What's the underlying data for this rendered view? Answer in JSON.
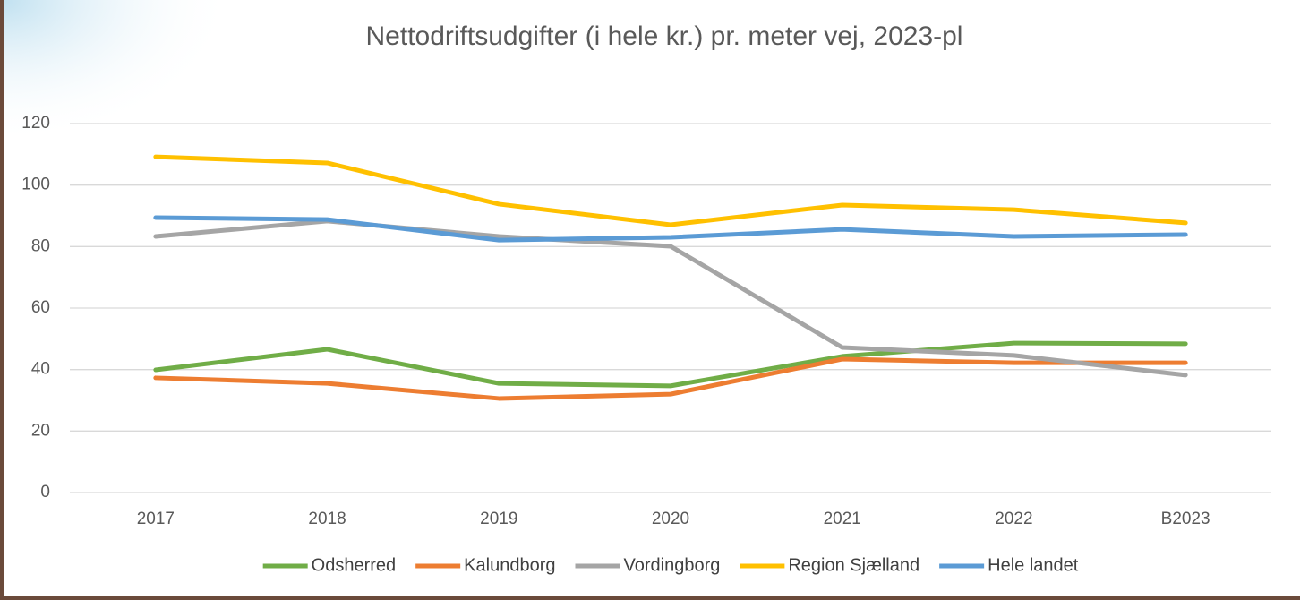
{
  "chart_data": {
    "type": "line",
    "title": "Nettodriftsudgifter (i hele kr.) pr. meter vej, 2023-pl",
    "categories": [
      "2017",
      "2018",
      "2019",
      "2020",
      "2021",
      "2022",
      "B2023"
    ],
    "series": [
      {
        "name": "Odsherred",
        "color": "#70ad47",
        "values": [
          39.9,
          46.6,
          35.5,
          34.7,
          44.3,
          48.6,
          48.4
        ]
      },
      {
        "name": "Kalundborg",
        "color": "#ed7d31",
        "values": [
          37.3,
          35.5,
          30.6,
          32,
          43.4,
          42.2,
          42.2
        ]
      },
      {
        "name": "Vordingborg",
        "color": "#a5a5a5",
        "values": [
          83.3,
          88.3,
          83.3,
          80.1,
          47.2,
          44.6,
          38.2
        ]
      },
      {
        "name": "Region Sjælland",
        "color": "#ffc000",
        "values": [
          109.2,
          107.2,
          93.8,
          87.1,
          93.5,
          92,
          87.7
        ]
      },
      {
        "name": "Hele landet",
        "color": "#5b9bd5",
        "values": [
          89.4,
          88.8,
          82.1,
          83,
          85.6,
          83.3,
          83.9
        ]
      }
    ],
    "ylim": [
      0,
      120
    ],
    "yticks": [
      0,
      20,
      40,
      60,
      80,
      100,
      120
    ],
    "grid": true,
    "legend": "bottom"
  }
}
